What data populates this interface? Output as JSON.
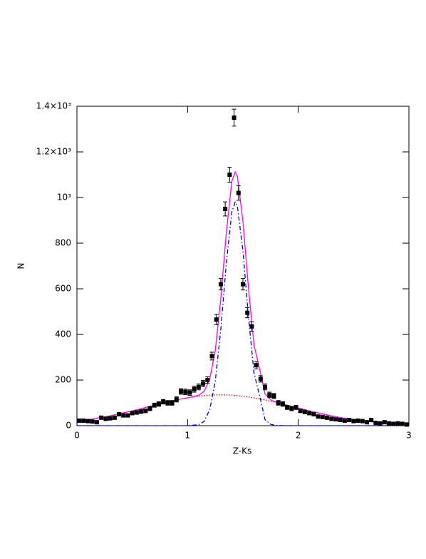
{
  "chart_data": {
    "type": "scatter",
    "x_label": "Z-Ks",
    "y_label": "N",
    "xlim": [
      0,
      3
    ],
    "ylim": [
      0,
      1400
    ],
    "xticks": [
      0,
      1,
      2,
      3
    ],
    "yticks": [
      0,
      200,
      400,
      600,
      800,
      {
        "value": 1000,
        "label": "10³"
      },
      {
        "value": 1200,
        "label": "1.2×10³"
      },
      {
        "value": 1400,
        "label": "1.4×10³"
      }
    ],
    "points": {
      "color": "#000000",
      "x": [
        0.02,
        0.06,
        0.1,
        0.14,
        0.18,
        0.22,
        0.26,
        0.3,
        0.34,
        0.38,
        0.42,
        0.46,
        0.5,
        0.54,
        0.58,
        0.62,
        0.66,
        0.7,
        0.74,
        0.78,
        0.82,
        0.86,
        0.9,
        0.94,
        0.98,
        1.02,
        1.06,
        1.1,
        1.14,
        1.18,
        1.22,
        1.26,
        1.3,
        1.34,
        1.38,
        1.42,
        1.46,
        1.5,
        1.54,
        1.58,
        1.62,
        1.66,
        1.7,
        1.74,
        1.78,
        1.82,
        1.86,
        1.9,
        1.94,
        1.98,
        2.02,
        2.06,
        2.1,
        2.14,
        2.18,
        2.22,
        2.26,
        2.3,
        2.34,
        2.38,
        2.42,
        2.46,
        2.5,
        2.54,
        2.58,
        2.62,
        2.66,
        2.7,
        2.74,
        2.78,
        2.82,
        2.86,
        2.9,
        2.94,
        2.98
      ],
      "values": [
        22,
        22,
        20,
        18,
        15,
        35,
        30,
        32,
        35,
        50,
        45,
        45,
        55,
        58,
        62,
        65,
        75,
        90,
        95,
        105,
        100,
        100,
        115,
        150,
        148,
        145,
        160,
        170,
        185,
        200,
        305,
        465,
        620,
        950,
        1100,
        1350,
        1020,
        620,
        495,
        435,
        265,
        205,
        170,
        135,
        130,
        100,
        95,
        80,
        75,
        80,
        65,
        60,
        55,
        50,
        40,
        38,
        35,
        30,
        28,
        25,
        22,
        25,
        20,
        22,
        20,
        15,
        25,
        12,
        10,
        15,
        10,
        8,
        10,
        8,
        5
      ],
      "errors": [
        5,
        5,
        4,
        4,
        4,
        6,
        5,
        6,
        6,
        7,
        7,
        7,
        7,
        8,
        8,
        8,
        9,
        9,
        10,
        10,
        10,
        10,
        11,
        12,
        12,
        12,
        13,
        13,
        14,
        14,
        17,
        22,
        25,
        31,
        33,
        37,
        32,
        25,
        22,
        21,
        16,
        14,
        13,
        12,
        11,
        10,
        10,
        9,
        9,
        9,
        8,
        8,
        7,
        7,
        6,
        6,
        6,
        5,
        5,
        5,
        5,
        5,
        4,
        5,
        4,
        4,
        5,
        3,
        3,
        4,
        3,
        3,
        3,
        3,
        2
      ]
    },
    "curves": [
      {
        "color": "#e00000",
        "style": "dotted",
        "x": [
          0,
          0.1,
          0.2,
          0.3,
          0.4,
          0.5,
          0.6,
          0.7,
          0.8,
          0.9,
          1.0,
          1.1,
          1.15,
          1.2,
          1.25,
          1.3,
          1.35,
          1.4,
          1.43,
          1.45,
          1.5,
          1.55,
          1.6,
          1.65,
          1.7,
          1.75,
          1.8,
          1.9,
          2.0,
          2.1,
          2.2,
          2.3,
          2.4,
          2.5,
          2.6,
          2.7,
          2.8,
          2.9,
          3.0
        ],
        "values": [
          20,
          26,
          34,
          43,
          54,
          65,
          77,
          90,
          102,
          113,
          122,
          129,
          132,
          134,
          135,
          135,
          135,
          134,
          132,
          132,
          129,
          126,
          122,
          117,
          113,
          107,
          102,
          90,
          77,
          65,
          54,
          43,
          34,
          26,
          20,
          15,
          10,
          7,
          5
        ]
      },
      {
        "color": "#0000dd",
        "style": "dashdot",
        "x": [
          0,
          0.1,
          0.2,
          0.3,
          0.4,
          0.5,
          0.6,
          0.7,
          0.8,
          0.9,
          1.0,
          1.1,
          1.15,
          1.2,
          1.25,
          1.3,
          1.35,
          1.4,
          1.43,
          1.45,
          1.5,
          1.55,
          1.6,
          1.65,
          1.7,
          1.75,
          1.8,
          1.9,
          2.0,
          2.1,
          2.2,
          2.3,
          2.4,
          2.5,
          2.6,
          2.7,
          2.8,
          2.9,
          3.0
        ],
        "values": [
          0,
          0,
          0,
          0,
          0,
          0,
          0,
          0,
          0,
          0,
          0,
          4,
          19,
          70,
          194,
          421,
          712,
          937,
          980,
          961,
          767,
          477,
          231,
          133,
          26,
          6,
          1,
          0,
          0,
          0,
          0,
          0,
          0,
          0,
          0,
          0,
          0,
          0,
          0
        ]
      },
      {
        "color": "#ff00ff",
        "style": "solid",
        "x": [
          0,
          0.1,
          0.2,
          0.3,
          0.4,
          0.5,
          0.6,
          0.7,
          0.8,
          0.9,
          1.0,
          1.1,
          1.15,
          1.2,
          1.25,
          1.3,
          1.35,
          1.4,
          1.43,
          1.45,
          1.5,
          1.55,
          1.6,
          1.65,
          1.7,
          1.75,
          1.8,
          1.9,
          2.0,
          2.1,
          2.2,
          2.3,
          2.4,
          2.5,
          2.6,
          2.7,
          2.8,
          2.9,
          3.0
        ],
        "values": [
          20,
          26,
          34,
          43,
          54,
          65,
          77,
          90,
          102,
          113,
          122,
          133,
          151,
          204,
          329,
          556,
          847,
          1071,
          1112,
          1093,
          896,
          603,
          353,
          250,
          139,
          113,
          103,
          90,
          77,
          65,
          54,
          43,
          34,
          26,
          20,
          15,
          10,
          7,
          5
        ]
      }
    ]
  }
}
